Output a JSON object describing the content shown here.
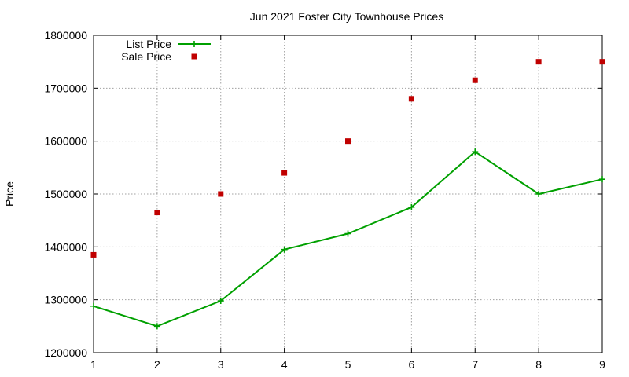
{
  "chart_data": {
    "type": "line",
    "title": "Jun 2021 Foster City Townhouse Prices",
    "xlabel": "",
    "ylabel": "Price",
    "x": [
      1,
      2,
      3,
      4,
      5,
      6,
      7,
      8,
      9
    ],
    "xlim": [
      1,
      9
    ],
    "ylim": [
      1200000,
      1800000
    ],
    "x_ticks": [
      "1",
      "2",
      "3",
      "4",
      "5",
      "6",
      "7",
      "8",
      "9"
    ],
    "y_ticks": [
      "1200000",
      "1300000",
      "1400000",
      "1500000",
      "1600000",
      "1700000",
      "1800000"
    ],
    "grid": true,
    "legend_position": "top-left",
    "series": [
      {
        "name": "List Price",
        "style": "line with plus markers",
        "color": "#00a000",
        "values": [
          1288000,
          1250000,
          1298000,
          1395000,
          1425000,
          1475000,
          1580000,
          1500000,
          1528000
        ]
      },
      {
        "name": "Sale Price",
        "style": "square markers",
        "color": "#c00000",
        "values": [
          1385000,
          1465000,
          1500000,
          1540000,
          1600000,
          1680000,
          1715000,
          1750000,
          1750000
        ]
      }
    ]
  }
}
